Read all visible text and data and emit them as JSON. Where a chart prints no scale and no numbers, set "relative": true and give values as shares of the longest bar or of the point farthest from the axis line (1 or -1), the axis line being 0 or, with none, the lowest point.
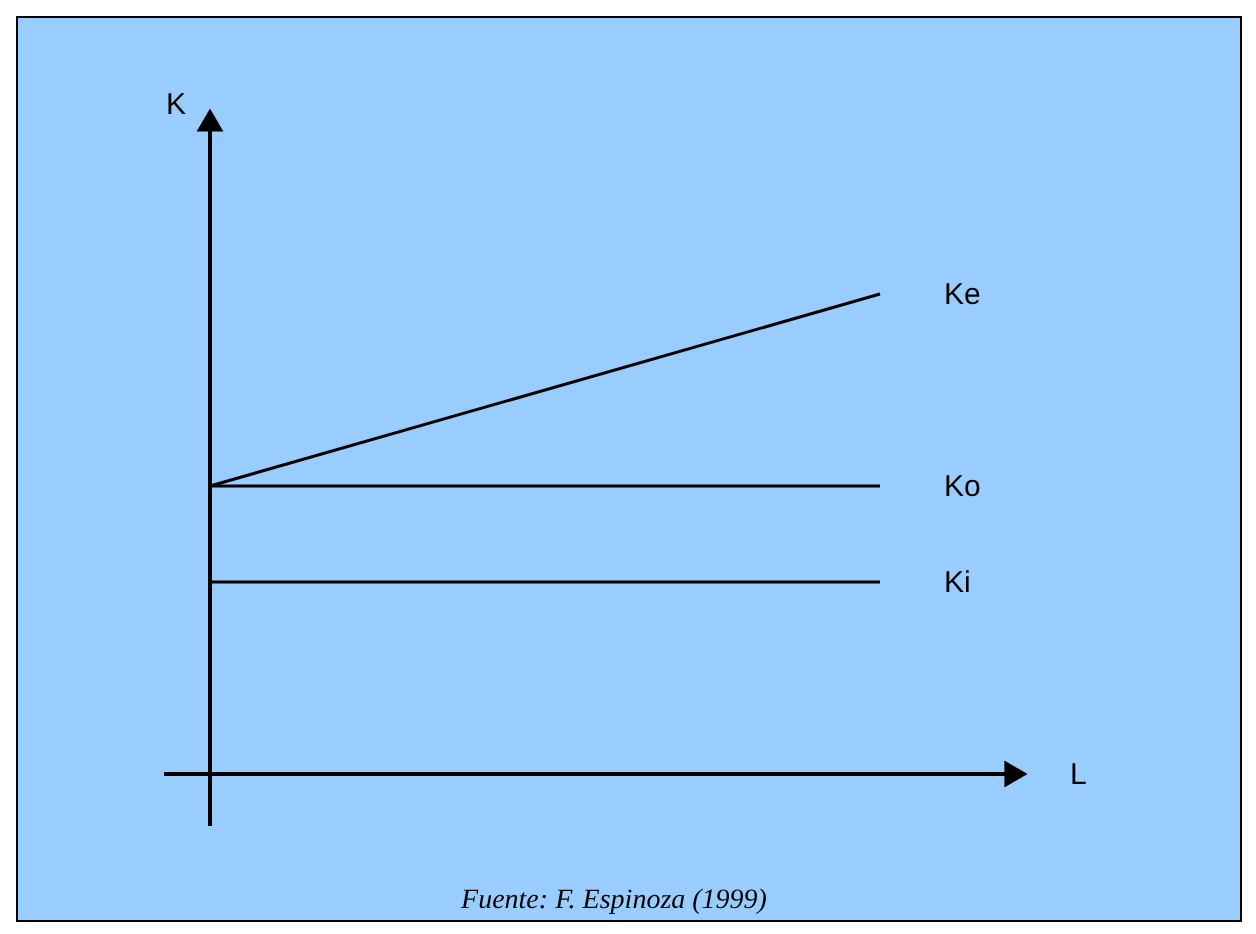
{
  "chart_data": {
    "type": "line",
    "relative": true,
    "xlabel": "L",
    "categories": [
      null,
      null
    ],
    "series": [
      {
        "name": "Ke",
        "color": "#000000",
        "values": [
          0.6,
          1.0
        ]
      },
      {
        "name": "Ko",
        "color": "#000000",
        "values": [
          0.6,
          0.6
        ]
      },
      {
        "name": "Ki",
        "color": "#000000",
        "values": [
          0.4,
          0.4
        ]
      }
    ],
    "annotations": [
      "K",
      "Fuente: F. Espinoza (1999)"
    ]
  }
}
